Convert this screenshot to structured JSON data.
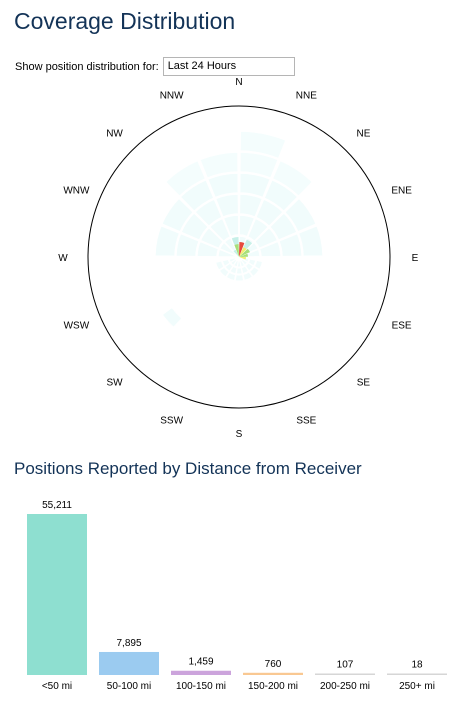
{
  "page": {
    "title": "Coverage Distribution",
    "section_title": "Positions Reported by Distance from Receiver"
  },
  "selector": {
    "label": "Show position distribution for:",
    "value": "Last 24 Hours"
  },
  "compass": {
    "labels": [
      "N",
      "NNE",
      "NE",
      "ENE",
      "E",
      "ESE",
      "SE",
      "SSE",
      "S",
      "SSW",
      "SW",
      "WSW",
      "W",
      "WNW",
      "NW",
      "NNW"
    ]
  },
  "colors": {
    "title": "#133357",
    "sector_fill": "#f1fcfc",
    "sector_fill_outer": "#f4fdfd",
    "near_red": "#e64b3c",
    "near_green": "#a8df7a",
    "near_yellow": "#f2ee70",
    "near_cyan": "#c7f0e8"
  },
  "chart_data": {
    "type": "bar",
    "categories": [
      "<50 mi",
      "50-100 mi",
      "100-150 mi",
      "150-200 mi",
      "200-250 mi",
      "250+ mi"
    ],
    "values": [
      55211,
      7895,
      1459,
      760,
      107,
      18
    ],
    "value_labels": [
      "55,211",
      "7,895",
      "1,459",
      "760",
      "107",
      "18"
    ],
    "colors": [
      "#8edfd0",
      "#9bcbf0",
      "#cca4dc",
      "#f9c892",
      "#d6d6d6",
      "#d6d6d6"
    ],
    "ylim": [
      0,
      55211
    ],
    "grid": false
  }
}
